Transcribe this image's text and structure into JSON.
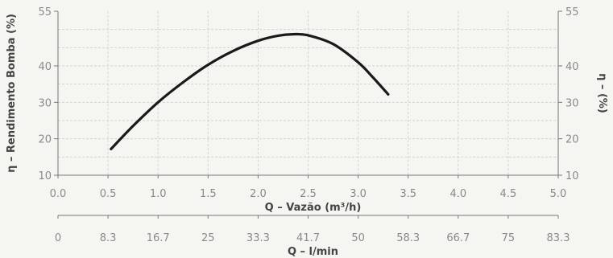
{
  "chart_data": {
    "type": "line",
    "xlabel": "Q – Vazão (m³/h)",
    "ylabel_left": "η – Rendimento Bomba (%)",
    "ylabel_right": "η – (%)",
    "secondary_xlabel": "Q – l/min",
    "xlim": [
      0.0,
      5.0
    ],
    "ylim": [
      10,
      55
    ],
    "x_ticks": [
      "0.0",
      "0.5",
      "1.0",
      "1.5",
      "2.0",
      "2.5",
      "3.0",
      "3.5",
      "4.0",
      "4.5",
      "5.0"
    ],
    "y_ticks": [
      "10",
      "20",
      "30",
      "40",
      "55"
    ],
    "secondary_x_ticks": [
      "0",
      "8.3",
      "16.7",
      "25",
      "33.3",
      "41.7",
      "50",
      "58.3",
      "66.7",
      "75",
      "83.3"
    ],
    "grid": true,
    "series": [
      {
        "x": [
          0.53,
          0.75,
          1.0,
          1.25,
          1.5,
          1.75,
          2.0,
          2.2,
          2.35,
          2.5,
          2.75,
          3.0,
          3.15,
          3.3
        ],
        "y": [
          17.2,
          23.5,
          30.0,
          35.5,
          40.3,
          44.1,
          46.9,
          48.3,
          48.7,
          48.4,
          46.0,
          41.0,
          36.8,
          32.2
        ],
        "color": "#1a1a1a"
      }
    ]
  }
}
